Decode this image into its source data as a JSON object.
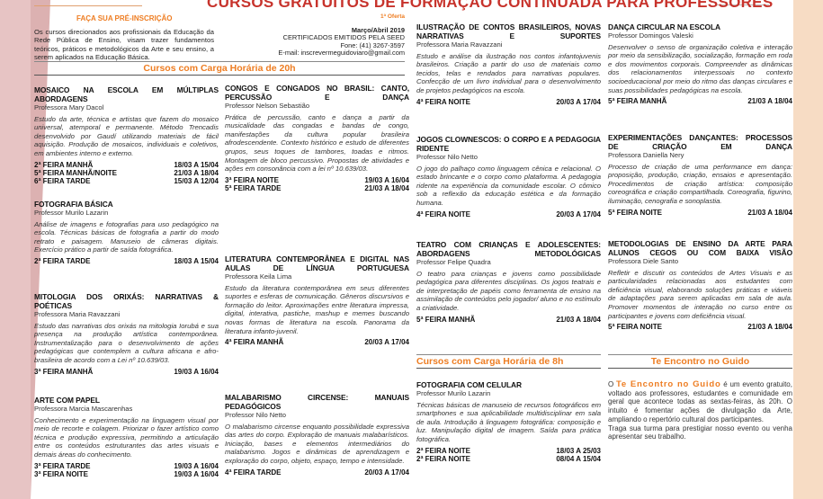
{
  "header": {
    "title": "CURSOS GRATUITOS DE FORMAÇÃO CONTINUADA PARA PROFESSORES",
    "pre_inscricao": "FAÇA SUA PRÉ-INSCRIÇÃO",
    "intro": "Os cursos direcionados aos profissionais da Educação da Rede Pública de Ensino, visam trazer fundamentos teóricos, práticos e metodológicos da Arte e seu ensino, a serem aplicados na Educação Básica.",
    "oferta": "1ª Oferta",
    "period": "Março/Abril 2019",
    "certificados": "CERTIFICADOS EMITIDOS PELA SEED",
    "fone": "Fone: (41) 3267-3597",
    "email": "E-mail: inscrevermeguidoviaro@gmail.com"
  },
  "sections": {
    "s20h": "Cursos com Carga Horária de 20h",
    "s8h": "Cursos com Carga Horária de 8h",
    "encontro": "Te Encontro no Guido"
  },
  "courses": [
    {
      "title": "MOSAICO NA ESCOLA EM MÚLTIPLAS ABORDAGENS",
      "teacher": "Professora Mary Dacol",
      "desc": "Estudo da arte, técnica e artistas que fazem do mosaico universal, atemporal e permanente. Método Trencadis desenvolvido por Gaudí utilizando materiais de fácil aquisição. Produção de mosaicos, individuais e coletivos, em ambientes interno e externo.",
      "schedule": [
        [
          "2ª FEIRA MANHÃ",
          "18/03 A 15/04"
        ],
        [
          "5ª FEIRA MANHÃ/NOITE",
          "21/03 A 18/04"
        ],
        [
          "6ª FEIRA TARDE",
          "15/03 A 12/04"
        ]
      ]
    },
    {
      "title": "FOTOGRAFIA BÁSICA",
      "teacher": "Professor Murilo Lazarin",
      "desc": "Análise de imagens e fotografias para uso pedagógico na escola. Técnicas básicas de fotografia a partir do modo retrato e paisagem. Manuseio de câmeras digitais. Exercício prático a partir de saída fotográfica.",
      "schedule": [
        [
          "2ª FEIRA TARDE",
          "18/03 A 15/04"
        ]
      ]
    },
    {
      "title": "MITOLOGIA DOS ORIXÁS: NARRATIVAS & POÉTICAS",
      "teacher": "Professora Maria Ravazzani",
      "desc": "Estudo das narrativas dos orixás na mitologia Iorubá e sua presença na produção artística contemporânea. Instrumentalização para o desenvolvimento de ações pedagógicas que contemplem a cultura africana e afro-brasileira de acordo com a Lei nº 10.639/03.",
      "schedule": [
        [
          "3ª FEIRA MANHÃ",
          "19/03 A 16/04"
        ]
      ]
    },
    {
      "title": "ARTE COM PAPEL",
      "teacher": "Professora Marcia Mascarenhas",
      "desc": "Conhecimento e experimentação na linguagem visual por meio de recorte e colagem. Priorizar o fazer artístico como técnica e produção expressiva, permitindo a articulação entre os conteúdos estruturantes das artes visuais e demais áreas do conhecimento.",
      "schedule": [
        [
          "3ª FEIRA TARDE",
          "19/03 A 16/04"
        ],
        [
          "3ª FEIRA NOITE",
          "19/03 A 16/04"
        ]
      ]
    },
    {
      "title": "CONGOS E CONGADOS NO BRASIL: CANTO, PERCUSSÃO E DANÇA",
      "teacher": "Professor Nelson Sebastião",
      "desc": "Prática de percussão, canto e dança a partir da musicalidade das congadas e bandas de congo, manifestações da cultura popular brasileira afrodescendente. Contexto histórico e estudo de diferentes grupos, seus toques de tambores, toadas e ritmos. Montagem de bloco percussivo. Propostas de atividades e ações em consonância com a lei nº 10.639/03.",
      "schedule": [
        [
          "3ª FEIRA NOITE",
          "19/03 A 16/04"
        ],
        [
          "5ª FEIRA TARDE",
          "21/03 A 18/04"
        ]
      ]
    },
    {
      "title": "LITERATURA CONTEMPORÂNEA E DIGITAL NAS AULAS DE LÍNGUA PORTUGUESA",
      "teacher": "Professora Keila Lima",
      "desc": "Estudo da literatura contemporânea em seus diferentes suportes e esferas de comunicação. Gêneros discursivos e formação do leitor. Aproximações entre literatura impressa, digital, interativa, pastiche, mashup e memes buscando novas formas de literatura na escola. Panorama da literatura infanto-juvenil.",
      "schedule": [
        [
          "4ª FEIRA MANHÃ",
          "20/03 A 17/04"
        ]
      ]
    },
    {
      "title": "MALABARISMO CIRCENSE: MANUAIS PEDAGÓGICOS",
      "teacher": "Professor Nilo Netto",
      "desc": "O malabarismo circense enquanto possibilidade expressiva das artes do corpo. Exploração de manuais malabarísticos. Iniciação, bases e elementos intermediários do malabarismo. Jogos e dinâmicas de aprendizagem e exploração do corpo, objeto, espaço, tempo e intensidade.",
      "schedule": [
        [
          "4ª FEIRA TARDE",
          "20/03 A 17/04"
        ]
      ]
    },
    {
      "title": "ILUSTRAÇÃO DE CONTOS BRASILEIROS, NOVAS NARRATIVAS E SUPORTES",
      "teacher": "Professora Maria Ravazzani",
      "desc": "Estudo e análise da ilustração nos contos infantojuvenis brasileiros. Criação a partir do uso de materiais como tecidos, telas e rendados para narrativas populares. Confecção de um livro individual para o desenvolvimento de projetos pedagógicos na escola.",
      "schedule": [
        [
          "4ª FEIRA NOITE",
          "20/03 A 17/04"
        ]
      ]
    },
    {
      "title": "JOGOS CLOWNESCOS: O CORPO E A PEDAGOGIA RIDENTE",
      "teacher": "Professor Nilo Netto",
      "desc": "O jogo do palhaço como linguagem cênica e relacional. O estado brincante e o corpo como plataforma. A pedagogia ridente na experiência da comunidade escolar. O cômico sob a reflexão da educação estética e da formação humana.",
      "schedule": [
        [
          "4ª FEIRA NOITE",
          "20/03 A 17/04"
        ]
      ]
    },
    {
      "title": "TEATRO COM CRIANÇAS E ADOLESCENTES: ABORDAGENS METODOLÓGICAS",
      "teacher": "Professor Felipe Quadra",
      "desc": "O teatro para crianças e jovens como possibilidade pedagógica para diferentes disciplinas. Os jogos teatrais e de interpretação de papéis como ferramenta de ensino na assimilação de conteúdos pelo jogador/ aluno e no estímulo a criatividade.",
      "schedule": [
        [
          "5ª FEIRA MANHÃ",
          "21/03 A 18/04"
        ]
      ]
    },
    {
      "title": "FOTOGRAFIA COM CELULAR",
      "teacher": "Professor Murilo Lazarin",
      "desc": "Técnicas básicas de manuseio de recursos fotográficos em smartphones e sua aplicabilidade multidisciplinar em sala de aula. Introdução à linguagem fotográfica: composição e luz. Manipulação digital de imagem. Saída para prática fotográfica.",
      "schedule": [
        [
          "2ª FEIRA NOITE",
          "18/03 A 25/03"
        ],
        [
          "2ª FEIRA NOITE",
          "08/04 A 15/04"
        ]
      ]
    },
    {
      "title": "DANÇA CIRCULAR NA ESCOLA",
      "teacher": "Professor Domingos Valeski",
      "desc": "Desenvolver o senso de organização coletiva e interação por meio da sensibilização, socialização, formação em roda e dos movimentos corporais. Compreender as dinâmicas dos relacionamentos interpessoais no contexto socioeducacional por meio do ritmo das danças circulares e suas possibilidades pedagógicas na escola.",
      "schedule": [
        [
          "5ª FEIRA MANHÃ",
          "21/03 A 18/04"
        ]
      ]
    },
    {
      "title": "EXPERIMENTAÇÕES DANÇANTES: PROCESSOS DE CRIAÇÃO EM DANÇA",
      "teacher": "Professora Daniella Nery",
      "desc": "Processo de criação de uma performance em dança: proposição, produção, criação, ensaios e apresentação. Procedimentos de criação artística: composição coreográfica e criação compartilhada. Coreografia, figurino, iluminação, cenografia e sonoplastia.",
      "schedule": [
        [
          "5ª FEIRA NOITE",
          "21/03 A 18/04"
        ]
      ]
    },
    {
      "title": "METODOLOGIAS DE ENSINO DA ARTE PARA ALUNOS CEGOS OU COM BAIXA VISÃO",
      "teacher": "Professora Diele Santo",
      "desc": "Refletir e discutir os conteúdos de Artes Visuais e as particularidades relacionadas aos estudantes com deficiência visual, elaborando soluções práticas e viáveis de adaptações para serem aplicadas em sala de aula. Promover momentos de interação no curso entre os participantes e jovens com deficiência visual.",
      "schedule": [
        [
          "5ª FEIRA NOITE",
          "21/03 A 18/04"
        ]
      ]
    }
  ],
  "encontro": {
    "prefix": "O ",
    "highlight": "Te Encontro no Guido",
    "text": " é um evento gratuito, voltado aos professores, estudantes e comunidade em geral que acontece todas as sextas-feiras, às 20h. O intuito é fomentar ações de divulgação da Arte, ampliando o repertório cultural dos participantes.",
    "text2": "Traga sua turma para prestigiar nosso evento ou venha apresentar seu trabalho."
  },
  "colors": {
    "accent": "#ee7d22",
    "title_red": "#c7332c"
  }
}
